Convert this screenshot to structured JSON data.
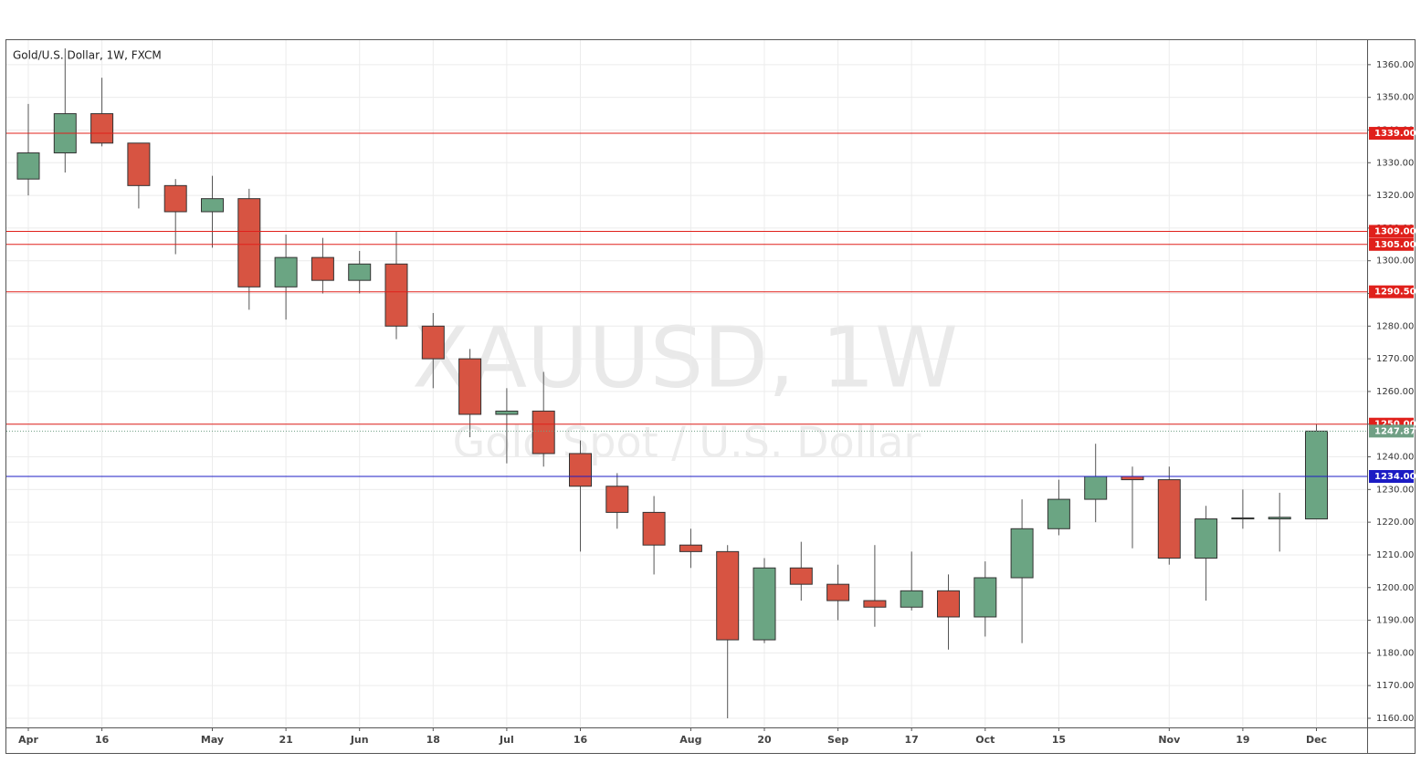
{
  "chart_data": {
    "type": "candlestick",
    "title": "Gold/U.S. Dollar, 1W, FXCM",
    "watermark": "XAUUSD, 1W",
    "watermark_subtitle": "Gold Spot / U.S. Dollar",
    "categories": [
      "Apr",
      null,
      "16",
      null,
      null,
      "May",
      null,
      "21",
      null,
      "Jun",
      null,
      "18",
      null,
      "Jul",
      null,
      "16",
      null,
      null,
      "Aug",
      null,
      "20",
      null,
      "Sep",
      null,
      "17",
      null,
      "Oct",
      null,
      "15",
      null,
      null,
      "Nov",
      null,
      "19",
      null,
      "Dec"
    ],
    "open": [
      1325,
      1333,
      1345,
      1336,
      1323,
      1315,
      1319,
      1292,
      1301,
      1294,
      1299,
      1280,
      1270,
      1253,
      1254,
      1241,
      1231,
      1223,
      1213,
      1211,
      1184,
      1206,
      1201,
      1196,
      1194,
      1199,
      1191,
      1203,
      1218,
      1227,
      1234,
      1233,
      1209,
      1221,
      1221,
      1221
    ],
    "high": [
      1348,
      1365,
      1356,
      1336,
      1325,
      1326,
      1322,
      1308,
      1307,
      1303,
      1309,
      1284,
      1273,
      1261,
      1266,
      1245,
      1235,
      1228,
      1218,
      1213,
      1209,
      1214,
      1207,
      1213,
      1211,
      1204,
      1208,
      1227,
      1233,
      1244,
      1237,
      1237,
      1225,
      1230,
      1229,
      1250
    ],
    "low": [
      1320,
      1327,
      1335,
      1316,
      1302,
      1304,
      1285,
      1282,
      1290,
      1290,
      1276,
      1261,
      1246,
      1238,
      1237,
      1211,
      1218,
      1204,
      1206,
      1160,
      1183,
      1196,
      1190,
      1188,
      1193,
      1181,
      1185,
      1183,
      1216,
      1220,
      1212,
      1207,
      1196,
      1218,
      1211,
      1221
    ],
    "close": [
      1333,
      1345,
      1336,
      1323,
      1315,
      1319,
      1292,
      1301,
      1294,
      1299,
      1280,
      1270,
      1253,
      1254,
      1241,
      1231,
      1223,
      1213,
      1211,
      1184,
      1206,
      1201,
      1196,
      1194,
      1199,
      1191,
      1203,
      1218,
      1227,
      1234,
      1233,
      1209,
      1221,
      1221.3,
      1221.5,
      1247.87
    ],
    "up_color": "#6ba583",
    "down_color": "#d75442",
    "ylim": [
      1157.2,
      1367.5
    ],
    "yticks": [
      {
        "value": 1160,
        "label": "1160.00"
      },
      {
        "value": 1170,
        "label": "1170.00"
      },
      {
        "value": 1180,
        "label": "1180.00"
      },
      {
        "value": 1190,
        "label": "1190.00"
      },
      {
        "value": 1200,
        "label": "1200.00"
      },
      {
        "value": 1210,
        "label": "1210.00"
      },
      {
        "value": 1220,
        "label": "1220.00"
      },
      {
        "value": 1230,
        "label": "1230.00"
      },
      {
        "value": 1240,
        "label": "1240.00"
      },
      {
        "value": 1250,
        "label": "1250.00"
      },
      {
        "value": 1260,
        "label": "1260.00"
      },
      {
        "value": 1270,
        "label": "1270.00"
      },
      {
        "value": 1280,
        "label": "1280.00"
      },
      {
        "value": 1290,
        "label": "1290.00"
      },
      {
        "value": 1300,
        "label": "1300.00"
      },
      {
        "value": 1310,
        "label": "1310.00"
      },
      {
        "value": 1320,
        "label": "1320.00"
      },
      {
        "value": 1330,
        "label": "1330.00"
      },
      {
        "value": 1340,
        "label": "1340.00"
      },
      {
        "value": 1350,
        "label": "1350.00"
      },
      {
        "value": 1360,
        "label": "1360.00"
      }
    ],
    "levels": [
      {
        "value": 1339,
        "label": "1339.00",
        "color": "#e0201b"
      },
      {
        "value": 1309,
        "label": "1309.00",
        "color": "#e0201b"
      },
      {
        "value": 1305,
        "label": "1305.00",
        "color": "#e0201b"
      },
      {
        "value": 1290.5,
        "label": "1290.50",
        "color": "#e0201b"
      },
      {
        "value": 1250,
        "label": "1250.00",
        "color": "#e0201b"
      },
      {
        "value": 1234,
        "label": "1234.00",
        "color": "#1c1cc4"
      }
    ],
    "last_price": {
      "value": 1247.87,
      "label": "1247.87",
      "color": "#6f9f84"
    },
    "grid": true
  }
}
